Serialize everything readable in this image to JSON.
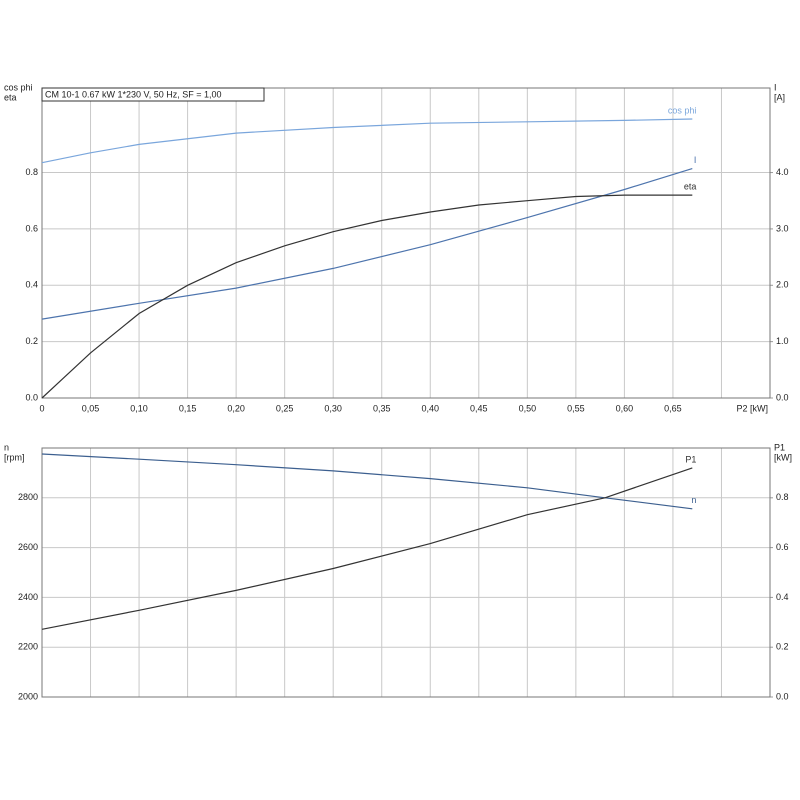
{
  "chart_data": [
    {
      "type": "line",
      "title": "CM 10-1   0.67 kW   1*230 V, 50 Hz, SF = 1,00",
      "ylabel": [
        "cos phi",
        "eta"
      ],
      "y2label": [
        "I",
        "[A]"
      ],
      "xlabel": "P2 [kW]",
      "xlim": [
        0,
        0.75
      ],
      "xticks": [
        0,
        {
          "value": 0.05,
          "label": "0,05"
        },
        {
          "value": 0.1,
          "label": "0,10"
        },
        {
          "value": 0.15,
          "label": "0,15"
        },
        {
          "value": 0.2,
          "label": "0,20"
        },
        {
          "value": 0.25,
          "label": "0,25"
        },
        {
          "value": 0.3,
          "label": "0,30"
        },
        {
          "value": 0.35,
          "label": "0,35"
        },
        {
          "value": 0.4,
          "label": "0,40"
        },
        {
          "value": 0.45,
          "label": "0,45"
        },
        {
          "value": 0.5,
          "label": "0,50"
        },
        {
          "value": 0.55,
          "label": "0,55"
        },
        {
          "value": 0.6,
          "label": "0,60"
        },
        {
          "value": 0.65,
          "label": "0,65"
        }
      ],
      "ylim": [
        0,
        1.1
      ],
      "yticks": [
        {
          "value": 0,
          "label": "0.0"
        },
        0.2,
        0.4,
        0.6,
        0.8
      ],
      "y2lim": [
        0,
        5.5
      ],
      "y2ticks": [
        {
          "value": 0,
          "label": "0.0"
        },
        {
          "value": 1,
          "label": "1.0"
        },
        {
          "value": 2,
          "label": "2.0"
        },
        {
          "value": 3,
          "label": "3.0"
        },
        {
          "value": 4,
          "label": "4.0"
        }
      ],
      "grid": true,
      "series": [
        {
          "name": "cos phi",
          "color": "#7aa6dc",
          "x": [
            0,
            0.05,
            0.1,
            0.2,
            0.3,
            0.4,
            0.5,
            0.6,
            0.67
          ],
          "values": [
            0.835,
            0.87,
            0.9,
            0.94,
            0.96,
            0.975,
            0.98,
            0.985,
            0.99
          ]
        },
        {
          "name": "I",
          "color": "#4d74ad",
          "axis": "y2",
          "x": [
            0,
            0.1,
            0.2,
            0.3,
            0.4,
            0.5,
            0.6,
            0.67
          ],
          "values": [
            1.4,
            1.68,
            1.95,
            2.3,
            2.72,
            3.2,
            3.7,
            4.07
          ]
        },
        {
          "name": "eta",
          "color": "#333333",
          "x": [
            0,
            0.05,
            0.1,
            0.15,
            0.2,
            0.25,
            0.3,
            0.35,
            0.4,
            0.45,
            0.5,
            0.55,
            0.6,
            0.67
          ],
          "values": [
            0,
            0.16,
            0.3,
            0.4,
            0.48,
            0.54,
            0.59,
            0.63,
            0.66,
            0.685,
            0.7,
            0.715,
            0.72,
            0.72
          ]
        }
      ]
    },
    {
      "type": "line",
      "ylabel": [
        "n",
        "[rpm]"
      ],
      "y2label": [
        "P1",
        "[kW]"
      ],
      "xlim": [
        0,
        0.75
      ],
      "ylim": [
        2000,
        3000
      ],
      "yticks": [
        2000,
        2200,
        2400,
        2600,
        2800
      ],
      "y2lim": [
        0,
        1.0
      ],
      "y2ticks": [
        {
          "value": 0,
          "label": "0.0"
        },
        0.2,
        0.4,
        0.6,
        0.8
      ],
      "grid": true,
      "series": [
        {
          "name": "n",
          "color": "#3c5f8f",
          "x": [
            0,
            0.1,
            0.2,
            0.3,
            0.4,
            0.5,
            0.58,
            0.67
          ],
          "values": [
            2976,
            2955,
            2933,
            2908,
            2877,
            2840,
            2800,
            2756
          ]
        },
        {
          "name": "P1",
          "color": "#333333",
          "axis": "y2",
          "x": [
            0,
            0.1,
            0.2,
            0.3,
            0.4,
            0.5,
            0.58,
            0.67
          ],
          "values": [
            0.272,
            0.348,
            0.428,
            0.516,
            0.616,
            0.732,
            0.8,
            0.92
          ]
        }
      ]
    }
  ]
}
